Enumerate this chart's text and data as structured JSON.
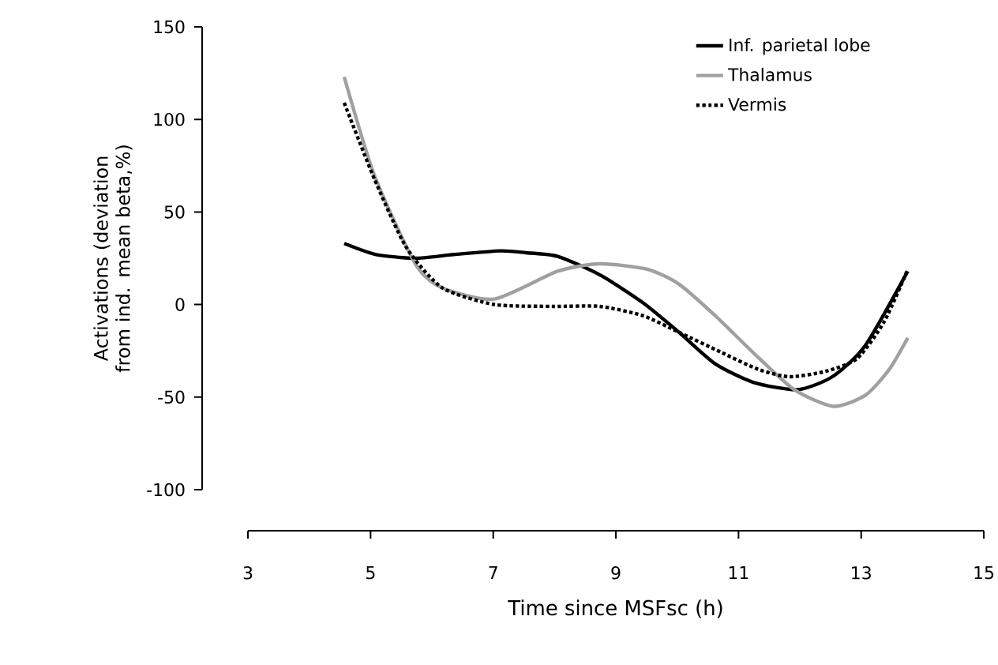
{
  "chart_data": {
    "type": "line",
    "xlabel": "Time since MSFsc (h)",
    "ylabel": "Activations (deviation from ind. mean beta,%)",
    "xlim": [
      3,
      15
    ],
    "xticks": [
      3,
      5,
      7,
      9,
      11,
      13,
      15
    ],
    "ylim": [
      -100,
      150
    ],
    "yticks": [
      -100,
      -50,
      0,
      50,
      100,
      150
    ],
    "grid": false,
    "legend": "top right",
    "marker": "none",
    "series": [
      {
        "name": "Inf. parietal lobe",
        "color": "#000000",
        "line_style": "solid",
        "x": [
          4.57,
          5.09,
          5.73,
          6.35,
          7.12,
          7.53,
          8.05,
          8.74,
          9.44,
          10.03,
          10.62,
          11.24,
          11.96,
          12.53,
          13.07,
          13.76
        ],
        "values": [
          33,
          27,
          25,
          27,
          29,
          28,
          26,
          16,
          1,
          -15,
          -32,
          -42,
          -46,
          -39,
          -22,
          18
        ]
      },
      {
        "name": "Thalamus",
        "color": "#a0a0a0",
        "line_style": "solid",
        "x": [
          4.57,
          5.06,
          5.73,
          6.17,
          7.02,
          8.05,
          8.74,
          9.52,
          10.03,
          10.62,
          11.24,
          11.91,
          12.55,
          13.07,
          13.46,
          13.76
        ],
        "values": [
          123,
          70,
          22,
          9,
          3,
          18,
          22,
          19,
          11,
          -6,
          -26,
          -46,
          -55,
          -49,
          -35,
          -18
        ]
      },
      {
        "name": "Vermis",
        "color": "#000000",
        "line_style": "dotted",
        "x": [
          4.57,
          5.06,
          5.58,
          6.17,
          7.02,
          7.97,
          8.74,
          9.44,
          10.03,
          10.73,
          11.32,
          11.83,
          12.43,
          12.94,
          13.38,
          13.76
        ],
        "values": [
          109,
          68,
          31,
          9,
          0,
          -1,
          -1,
          -6,
          -15,
          -26,
          -35,
          -39,
          -36,
          -29,
          -9,
          19
        ]
      }
    ]
  }
}
